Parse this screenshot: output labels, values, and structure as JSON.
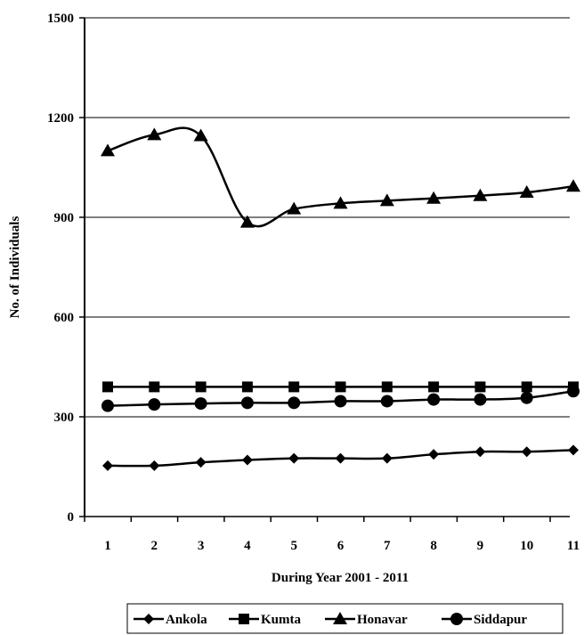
{
  "chart_data": {
    "type": "line",
    "xlabel": "During Year 2001 - 2011",
    "ylabel": "No. of Individuals",
    "x": [
      1,
      2,
      3,
      4,
      5,
      6,
      7,
      8,
      9,
      10,
      11
    ],
    "ylim": [
      0,
      1500
    ],
    "yticks": [
      0,
      300,
      600,
      900,
      1200,
      1500
    ],
    "grid": "horizontal",
    "legend_position": "bottom",
    "series": [
      {
        "name": "Ankola",
        "marker": "diamond",
        "values": [
          153,
          153,
          163,
          170,
          175,
          175,
          175,
          187,
          195,
          195,
          200
        ]
      },
      {
        "name": "Kumta",
        "marker": "square",
        "values": [
          390,
          390,
          390,
          390,
          390,
          390,
          390,
          390,
          390,
          390,
          390
        ]
      },
      {
        "name": "Honavar",
        "marker": "triangle",
        "values": [
          1100,
          1148,
          1145,
          885,
          925,
          942,
          950,
          957,
          965,
          975,
          993
        ]
      },
      {
        "name": "Siddapur",
        "marker": "circle",
        "values": [
          333,
          337,
          340,
          342,
          342,
          347,
          347,
          352,
          352,
          357,
          377
        ]
      }
    ]
  }
}
